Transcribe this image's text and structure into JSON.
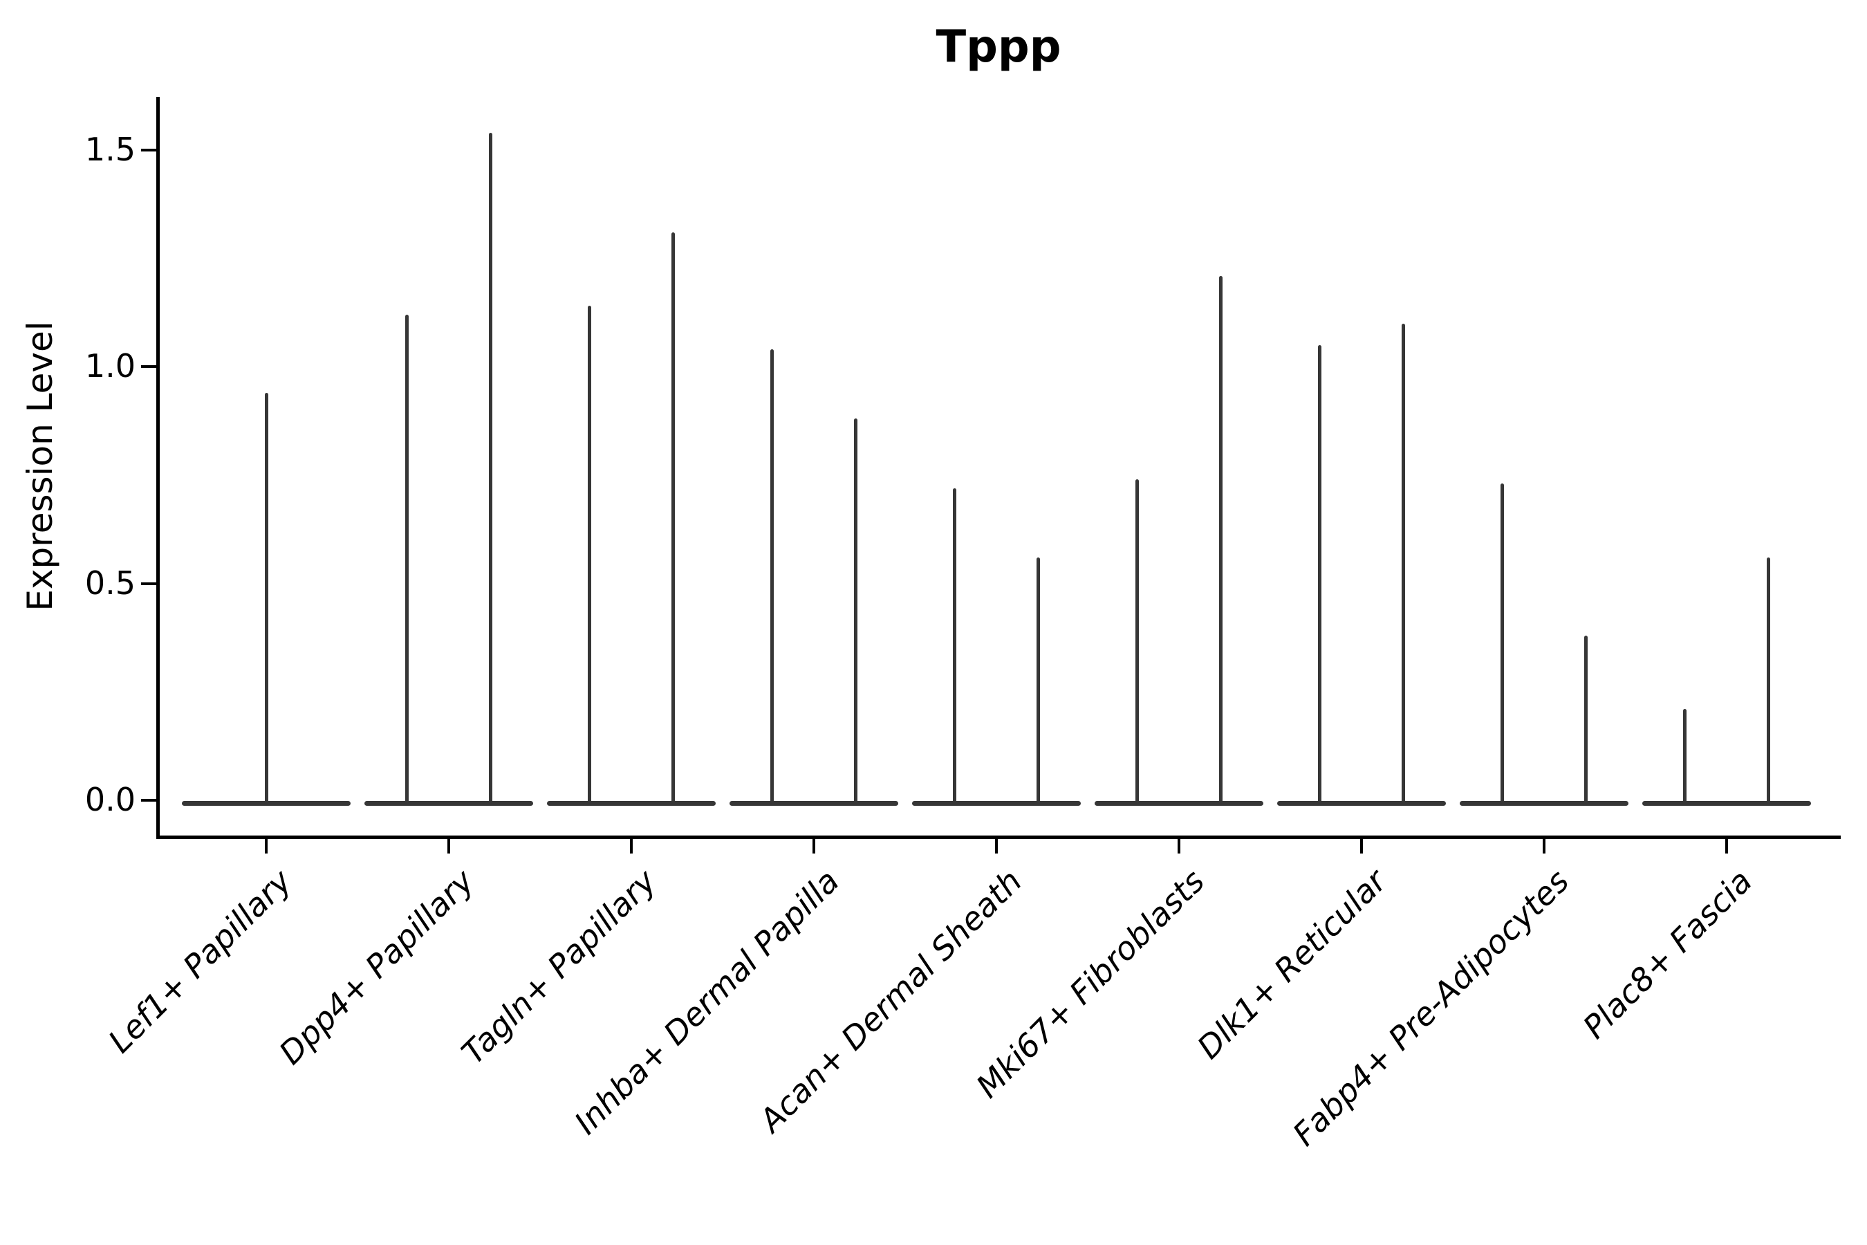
{
  "figure": {
    "title": "Tppp"
  },
  "chart_data": {
    "type": "violin",
    "title": "Tppp",
    "xlabel": "",
    "ylabel": "Expression Level",
    "ylim": [
      -0.08,
      1.66
    ],
    "grid": false,
    "legend": null,
    "style_note": "Collapsed single-gene violin plot: each violin is a flat base at expression 0 with one or two thin needle spikes rising to the maximum expression values.",
    "yticks": [
      {
        "value": 0.0,
        "label": "0.0"
      },
      {
        "value": 0.5,
        "label": "0.5"
      },
      {
        "value": 1.0,
        "label": "1.0"
      },
      {
        "value": 1.5,
        "label": "1.5"
      }
    ],
    "categories": [
      "Lef1+ Papillary",
      "Dpp4+ Papillary",
      "Tagln+ Papillary",
      "Inhba+ Dermal Papilla",
      "Acan+ Dermal Sheath",
      "Mki67+ Fibroblasts",
      "Dlk1+ Reticular",
      "Fabp4+ Pre-Adipocytes",
      "Plac8+ Fascia"
    ],
    "violins": [
      {
        "category": "Lef1+ Papillary",
        "spike_values": [
          0.94
        ]
      },
      {
        "category": "Dpp4+ Papillary",
        "spike_values": [
          1.12,
          1.54
        ]
      },
      {
        "category": "Tagln+ Papillary",
        "spike_values": [
          1.14,
          1.31
        ]
      },
      {
        "category": "Inhba+ Dermal Papilla",
        "spike_values": [
          1.04,
          0.88
        ]
      },
      {
        "category": "Acan+ Dermal Sheath",
        "spike_values": [
          0.72,
          0.56
        ]
      },
      {
        "category": "Mki67+ Fibroblasts",
        "spike_values": [
          0.74,
          1.21
        ]
      },
      {
        "category": "Dlk1+ Reticular",
        "spike_values": [
          1.05,
          1.1
        ]
      },
      {
        "category": "Fabp4+ Pre-Adipocytes",
        "spike_values": [
          0.73,
          0.38
        ]
      },
      {
        "category": "Plac8+ Fascia",
        "spike_values": [
          0.21,
          0.56
        ]
      }
    ],
    "colors": {
      "violin": "#363636",
      "axis": "#000000",
      "text": "#000000",
      "background": "#ffffff"
    }
  }
}
